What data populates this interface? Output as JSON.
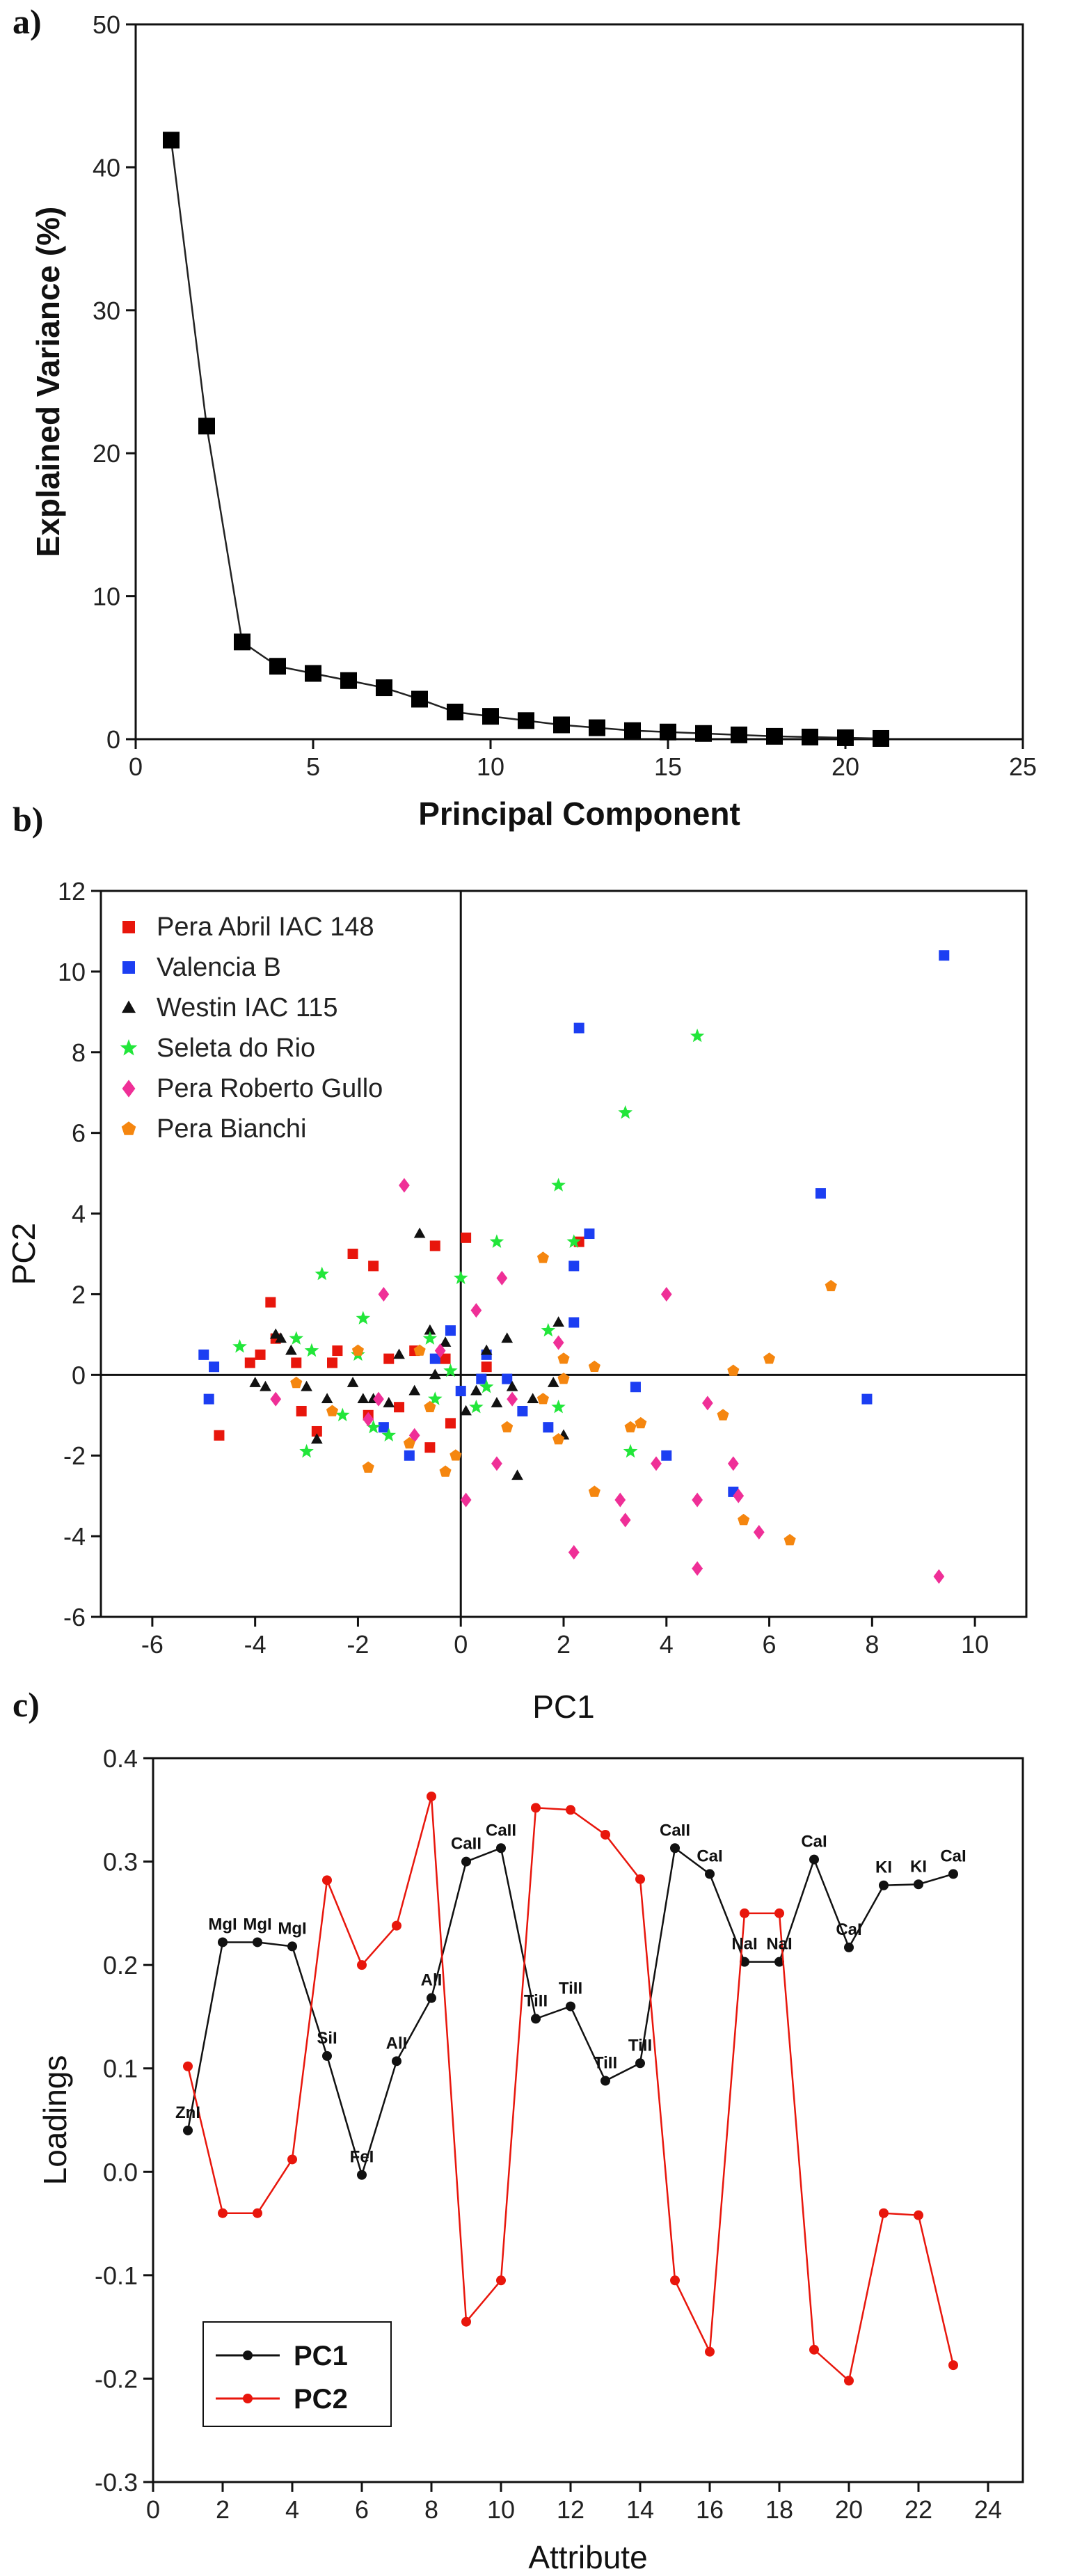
{
  "panels": {
    "a": "a)",
    "b": "b)",
    "c": "c)"
  },
  "chart_data": [
    {
      "type": "scatter",
      "panel": "a",
      "xlabel": "Principal Component",
      "ylabel": "Explained Variance (%)",
      "xlim": [
        0,
        25
      ],
      "ylim": [
        0,
        50
      ],
      "xticks": [
        0,
        5,
        10,
        15,
        20,
        25
      ],
      "yticks": [
        0,
        10,
        20,
        30,
        40,
        50
      ],
      "marker": "square",
      "line": true,
      "x": [
        1,
        2,
        3,
        4,
        5,
        6,
        7,
        8,
        9,
        10,
        11,
        12,
        13,
        14,
        15,
        16,
        17,
        18,
        19,
        20,
        21
      ],
      "values": [
        41.9,
        21.9,
        6.8,
        5.1,
        4.6,
        4.1,
        3.6,
        2.8,
        1.9,
        1.6,
        1.3,
        1.0,
        0.8,
        0.6,
        0.5,
        0.4,
        0.3,
        0.2,
        0.15,
        0.1,
        0.05
      ]
    },
    {
      "type": "scatter",
      "panel": "b",
      "xlabel": "PC1",
      "ylabel": "PC2",
      "xlim": [
        -7,
        11
      ],
      "ylim": [
        -6,
        12
      ],
      "xticks": [
        -6,
        -4,
        -2,
        0,
        2,
        4,
        6,
        8,
        10
      ],
      "yticks": [
        -6,
        -4,
        -2,
        0,
        2,
        4,
        6,
        8,
        10,
        12
      ],
      "legend_position": "top-left",
      "series": [
        {
          "name": "Pera Abril IAC 148",
          "color": "#e8160c",
          "marker": "square",
          "points": [
            [
              -4.7,
              -1.5
            ],
            [
              -3.7,
              1.8
            ],
            [
              -3.6,
              0.9
            ],
            [
              -3.9,
              0.5
            ],
            [
              -3.2,
              0.3
            ],
            [
              -2.4,
              0.6
            ],
            [
              -2.1,
              3.0
            ],
            [
              -1.7,
              2.7
            ],
            [
              -1.4,
              0.4
            ],
            [
              -0.5,
              3.2
            ],
            [
              -0.3,
              0.4
            ],
            [
              -0.9,
              0.6
            ],
            [
              -1.2,
              -0.8
            ],
            [
              -1.8,
              -1.0
            ],
            [
              -2.8,
              -1.4
            ],
            [
              0.1,
              3.4
            ],
            [
              0.5,
              0.2
            ],
            [
              -0.2,
              -1.2
            ],
            [
              -2.5,
              0.3
            ],
            [
              -3.1,
              -0.9
            ],
            [
              -0.6,
              -1.8
            ],
            [
              -4.1,
              0.3
            ],
            [
              2.3,
              3.3
            ]
          ]
        },
        {
          "name": "Valencia B",
          "color": "#1c3ef2",
          "marker": "square",
          "points": [
            [
              9.4,
              10.4
            ],
            [
              2.3,
              8.6
            ],
            [
              2.5,
              3.5
            ],
            [
              2.2,
              2.7
            ],
            [
              2.2,
              1.3
            ],
            [
              7.0,
              4.5
            ],
            [
              7.9,
              -0.6
            ],
            [
              5.3,
              -2.9
            ],
            [
              4.0,
              -2.0
            ],
            [
              3.4,
              -0.3
            ],
            [
              1.2,
              -0.9
            ],
            [
              0.4,
              -0.1
            ],
            [
              0.0,
              -0.4
            ],
            [
              -0.5,
              0.4
            ],
            [
              -1.0,
              -2.0
            ],
            [
              -1.5,
              -1.3
            ],
            [
              -4.9,
              -0.6
            ],
            [
              -4.8,
              0.2
            ],
            [
              -5.0,
              0.5
            ],
            [
              1.7,
              -1.3
            ],
            [
              -0.2,
              1.1
            ],
            [
              0.5,
              0.5
            ],
            [
              0.9,
              -0.1
            ]
          ]
        },
        {
          "name": "Westin IAC 115",
          "color": "#111111",
          "marker": "triangle",
          "points": [
            [
              -3.6,
              1.0
            ],
            [
              -3.5,
              0.9
            ],
            [
              -3.3,
              0.6
            ],
            [
              -3.0,
              -0.3
            ],
            [
              -2.6,
              -0.6
            ],
            [
              -2.1,
              -0.2
            ],
            [
              -1.7,
              -0.6
            ],
            [
              -1.4,
              -0.7
            ],
            [
              -1.2,
              0.5
            ],
            [
              -0.9,
              -0.4
            ],
            [
              -0.8,
              3.5
            ],
            [
              -0.6,
              1.1
            ],
            [
              -0.5,
              0.0
            ],
            [
              -0.3,
              0.8
            ],
            [
              0.1,
              -0.9
            ],
            [
              0.3,
              -0.4
            ],
            [
              0.5,
              0.6
            ],
            [
              0.7,
              -0.7
            ],
            [
              0.9,
              0.9
            ],
            [
              1.0,
              -0.3
            ],
            [
              1.1,
              -2.5
            ],
            [
              1.4,
              -0.6
            ],
            [
              1.8,
              -0.2
            ],
            [
              1.9,
              1.3
            ],
            [
              2.0,
              -1.5
            ],
            [
              -1.9,
              -0.6
            ],
            [
              -3.8,
              -0.3
            ],
            [
              -4.0,
              -0.2
            ],
            [
              -2.8,
              -1.6
            ]
          ]
        },
        {
          "name": "Seleta do Rio",
          "color": "#22e63a",
          "marker": "star",
          "points": [
            [
              4.6,
              8.4
            ],
            [
              3.2,
              6.5
            ],
            [
              1.9,
              4.7
            ],
            [
              2.2,
              3.3
            ],
            [
              0.7,
              3.3
            ],
            [
              -2.7,
              2.5
            ],
            [
              -1.9,
              1.4
            ],
            [
              0.0,
              2.4
            ],
            [
              1.7,
              1.1
            ],
            [
              -0.6,
              0.9
            ],
            [
              -3.2,
              0.9
            ],
            [
              -4.3,
              0.7
            ],
            [
              -2.9,
              0.6
            ],
            [
              -2.0,
              0.5
            ],
            [
              -0.2,
              0.1
            ],
            [
              0.3,
              -0.8
            ],
            [
              -2.3,
              -1.0
            ],
            [
              -3.0,
              -1.9
            ],
            [
              -1.4,
              -1.5
            ],
            [
              1.9,
              -0.8
            ],
            [
              3.3,
              -1.9
            ],
            [
              -1.7,
              -1.3
            ],
            [
              -0.5,
              -0.6
            ],
            [
              0.5,
              -0.3
            ]
          ]
        },
        {
          "name": "Pera Roberto Gullo",
          "color": "#ef2f97",
          "marker": "diamond",
          "points": [
            [
              -1.1,
              4.7
            ],
            [
              0.8,
              2.4
            ],
            [
              0.3,
              1.6
            ],
            [
              1.9,
              0.8
            ],
            [
              -1.5,
              2.0
            ],
            [
              -1.6,
              -0.6
            ],
            [
              -3.6,
              -0.6
            ],
            [
              -0.4,
              0.6
            ],
            [
              -0.9,
              -1.5
            ],
            [
              0.1,
              -3.1
            ],
            [
              0.7,
              -2.2
            ],
            [
              1.0,
              -0.6
            ],
            [
              2.2,
              -4.4
            ],
            [
              3.1,
              -3.1
            ],
            [
              3.2,
              -3.6
            ],
            [
              3.8,
              -2.2
            ],
            [
              4.0,
              2.0
            ],
            [
              4.6,
              -3.1
            ],
            [
              4.6,
              -4.8
            ],
            [
              4.8,
              -0.7
            ],
            [
              5.3,
              -2.2
            ],
            [
              5.4,
              -3.0
            ],
            [
              5.8,
              -3.9
            ],
            [
              9.3,
              -5.0
            ],
            [
              -1.8,
              -1.1
            ]
          ]
        },
        {
          "name": "Pera Bianchi",
          "color": "#f5860f",
          "marker": "pentagon",
          "points": [
            [
              7.2,
              2.2
            ],
            [
              6.0,
              0.4
            ],
            [
              5.3,
              0.1
            ],
            [
              5.1,
              -1.0
            ],
            [
              5.5,
              -3.6
            ],
            [
              6.4,
              -4.1
            ],
            [
              3.5,
              -1.2
            ],
            [
              3.3,
              -1.3
            ],
            [
              2.6,
              0.2
            ],
            [
              2.6,
              -2.9
            ],
            [
              1.6,
              2.9
            ],
            [
              2.0,
              0.4
            ],
            [
              2.0,
              -0.1
            ],
            [
              1.9,
              -1.6
            ],
            [
              -0.1,
              -2.0
            ],
            [
              -0.3,
              -2.4
            ],
            [
              -0.6,
              -0.8
            ],
            [
              -1.0,
              -1.7
            ],
            [
              -1.8,
              -2.3
            ],
            [
              -2.0,
              0.6
            ],
            [
              -2.5,
              -0.9
            ],
            [
              -3.2,
              -0.2
            ],
            [
              0.9,
              -1.3
            ],
            [
              1.6,
              -0.6
            ],
            [
              -0.8,
              0.6
            ]
          ]
        }
      ]
    },
    {
      "type": "line",
      "panel": "c",
      "xlabel": "Attribute",
      "ylabel": "Loadings",
      "xlim": [
        0,
        25
      ],
      "ylim": [
        -0.3,
        0.4
      ],
      "xticks": [
        0,
        2,
        4,
        6,
        8,
        10,
        12,
        14,
        16,
        18,
        20,
        22,
        24
      ],
      "yticks": [
        -0.3,
        -0.2,
        -0.1,
        0.0,
        0.1,
        0.2,
        0.3,
        0.4
      ],
      "ytick_labels": [
        "-0.3",
        "-0.2",
        "-0.1",
        "0.0",
        "0.1",
        "0.2",
        "0.3",
        "0.4"
      ],
      "x": [
        1,
        2,
        3,
        4,
        5,
        6,
        7,
        8,
        9,
        10,
        11,
        12,
        13,
        14,
        15,
        16,
        17,
        18,
        19,
        20,
        21,
        22,
        23
      ],
      "legend_position": "bottom-left",
      "series": [
        {
          "name": "PC1",
          "color": "#111111",
          "values": [
            0.04,
            0.222,
            0.222,
            0.218,
            0.112,
            -0.003,
            0.107,
            0.168,
            0.3,
            0.313,
            0.148,
            0.16,
            0.088,
            0.105,
            0.313,
            0.288,
            0.203,
            0.203,
            0.302,
            0.217,
            0.277,
            0.278,
            0.288
          ]
        },
        {
          "name": "PC2",
          "color": "#e8160c",
          "values": [
            0.102,
            -0.04,
            -0.04,
            0.012,
            0.282,
            0.2,
            0.238,
            0.363,
            -0.145,
            -0.105,
            0.352,
            0.35,
            0.326,
            0.283,
            -0.105,
            -0.174,
            0.25,
            0.25,
            -0.172,
            -0.202,
            -0.04,
            -0.042,
            -0.187
          ]
        }
      ],
      "point_labels": [
        "ZnI",
        "MgI",
        "MgI",
        "MgI",
        "SiI",
        "FeI",
        "AlI",
        "AlI",
        "CaII",
        "CaII",
        "TiII",
        "TiII",
        "TiII",
        "TiII",
        "CaII",
        "CaI",
        "NaI",
        "NaI",
        "CaI",
        "CaI",
        "KI",
        "KI",
        "CaI"
      ]
    }
  ]
}
